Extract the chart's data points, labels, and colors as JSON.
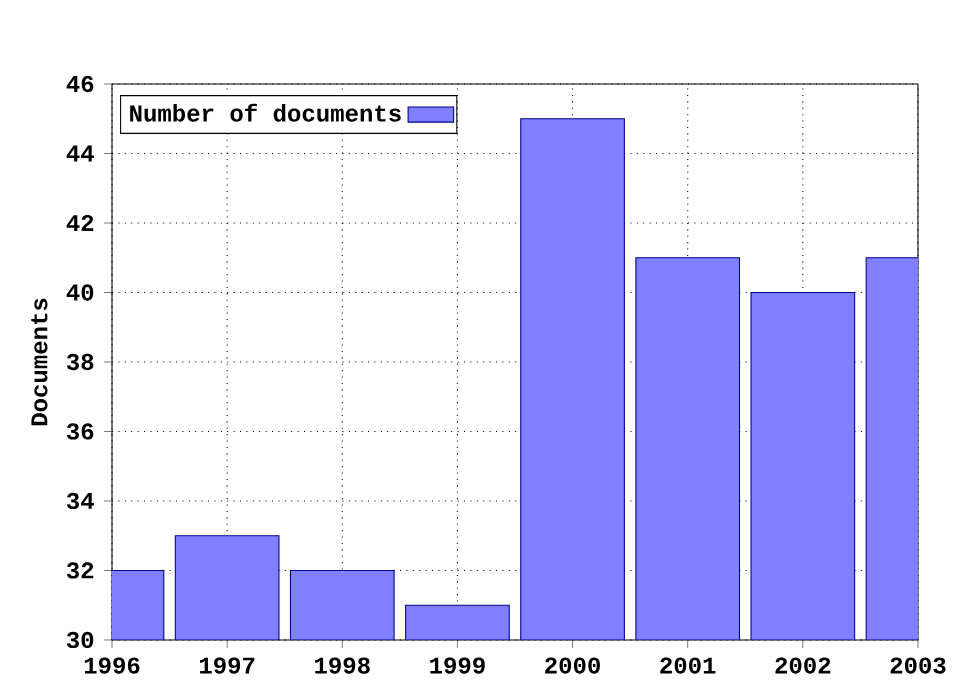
{
  "chart_data": {
    "type": "bar",
    "ylabel": "Documents",
    "x": [
      1996,
      1997,
      1998,
      1999,
      2000,
      2001,
      2002,
      2003
    ],
    "series": [
      {
        "name": "Number of documents",
        "color": "#8080ff",
        "values": [
          32,
          33,
          32,
          31,
          45,
          41,
          40,
          41
        ]
      }
    ],
    "xlim": [
      1996,
      2003
    ],
    "xticks": [
      1996,
      1997,
      1998,
      1999,
      2000,
      2001,
      2002,
      2003
    ],
    "ylim": [
      30,
      46
    ],
    "yticks": [
      30,
      32,
      34,
      36,
      38,
      40,
      42,
      44,
      46
    ],
    "grid": true,
    "legend": "top left"
  }
}
